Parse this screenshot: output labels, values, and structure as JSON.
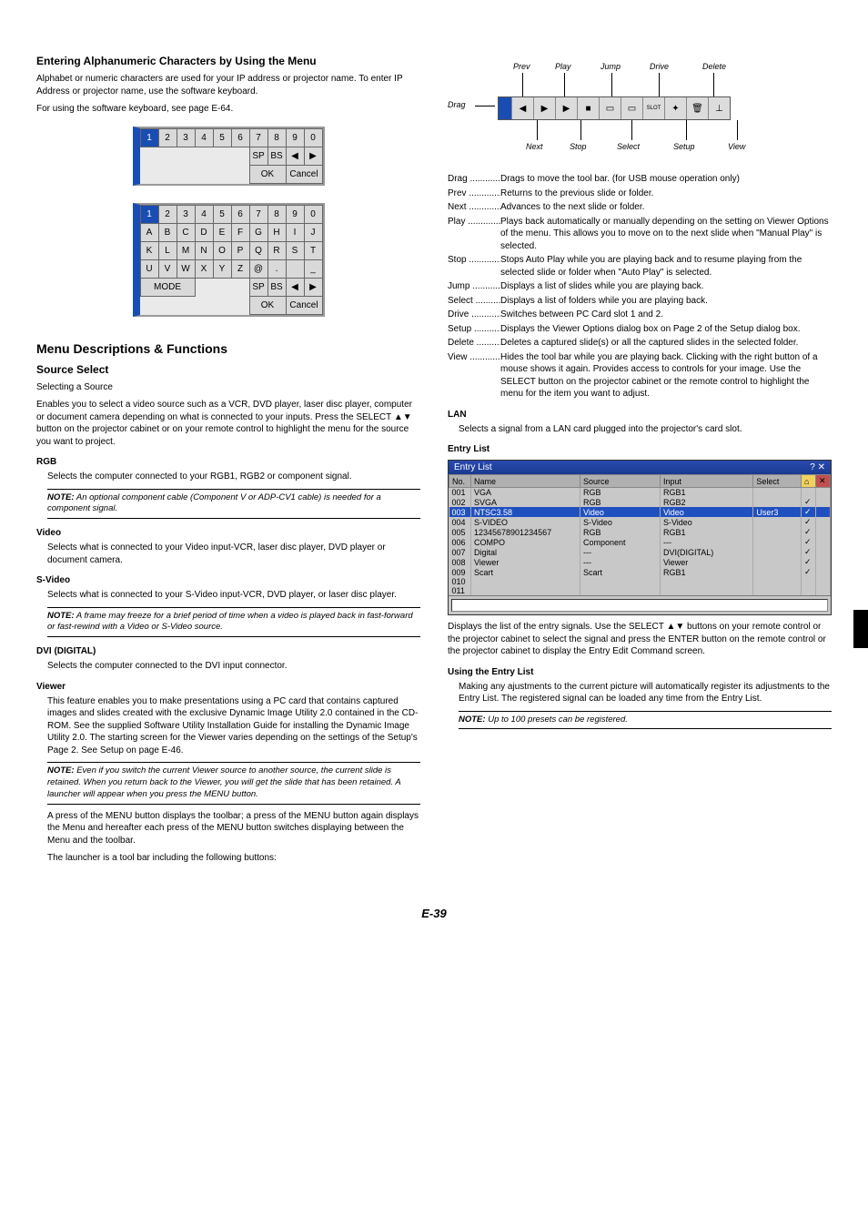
{
  "left": {
    "h1": "Entering Alphanumeric Characters by Using the Menu",
    "p1": "Alphabet or numeric characters are used for your IP address or projector name. To enter IP Address or projector name, use the software keyboard.",
    "p2": "For using the software keyboard, see page E-64.",
    "kb1": {
      "row1": [
        "1",
        "2",
        "3",
        "4",
        "5",
        "6",
        "7",
        "8",
        "9",
        "0"
      ],
      "sp": "SP",
      "bs": "BS",
      "l": "◀",
      "r": "▶",
      "ok": "OK",
      "cancel": "Cancel"
    },
    "kb2": {
      "row1": [
        "1",
        "2",
        "3",
        "4",
        "5",
        "6",
        "7",
        "8",
        "9",
        "0"
      ],
      "row2": [
        "A",
        "B",
        "C",
        "D",
        "E",
        "F",
        "G",
        "H",
        "I",
        "J"
      ],
      "row3": [
        "K",
        "L",
        "M",
        "N",
        "O",
        "P",
        "Q",
        "R",
        "S",
        "T"
      ],
      "row4": [
        "U",
        "V",
        "W",
        "X",
        "Y",
        "Z",
        "@",
        ".",
        "",
        "_"
      ],
      "mode": "MODE",
      "sp": "SP",
      "bs": "BS",
      "l": "◀",
      "r": "▶",
      "ok": "OK",
      "cancel": "Cancel"
    },
    "h2": "Menu Descriptions & Functions",
    "h3": "Source Select",
    "p3": "Selecting a Source",
    "p4": "Enables you to select a video source such as a VCR, DVD player, laser disc player, computer or document camera depending on what is connected to your inputs. Press the SELECT ▲▼ button on the projector cabinet or on your remote control to highlight the menu for the source you want to project.",
    "rgb_h": "RGB",
    "rgb_p": "Selects the computer connected to your RGB1, RGB2 or component signal.",
    "rgb_note": "An optional component cable (Component V or ADP-CV1 cable) is needed for a component signal.",
    "video_h": "Video",
    "video_p": "Selects what is connected to your Video input-VCR, laser disc player, DVD player or document camera.",
    "svideo_h": "S-Video",
    "svideo_p": "Selects what is connected to your S-Video input-VCR, DVD player, or laser disc player.",
    "svideo_note": "A frame may freeze for a brief period of time when a video is played back in fast-forward or fast-rewind with a Video or S-Video source.",
    "dvi_h": "DVI (DIGITAL)",
    "dvi_p": "Selects the computer connected to the DVI input connector.",
    "viewer_h": "Viewer",
    "viewer_p": "This feature enables you to make presentations using a PC card that contains captured images and slides created with the exclusive Dynamic Image Utility 2.0 contained in the CD-ROM. See the supplied Software Utility Installation Guide for installing the Dynamic Image Utility 2.0. The starting screen for the Viewer varies depending on the settings of the Setup's Page 2. See Setup on page E-46.",
    "viewer_note": "Even if you switch the current Viewer source to another source, the current slide is retained. When you return back to the Viewer, you will get the slide that has been retained. A launcher will appear when you press the MENU button.",
    "viewer_p2": "A press of the MENU button displays the toolbar; a press of the MENU button again displays the Menu and hereafter each press of the MENU button switches displaying between the Menu and the toolbar.",
    "viewer_p3": "The launcher is a tool bar including the following buttons:"
  },
  "right": {
    "tb_labels": {
      "drag": "Drag",
      "prev": "Prev",
      "play": "Play",
      "jump": "Jump",
      "drive": "Drive",
      "delete": "Delete",
      "next": "Next",
      "stop": "Stop",
      "select": "Select",
      "setup": "Setup",
      "view": "View"
    },
    "defs": [
      {
        "k": "Drag",
        "dots": "..............",
        "v": "Drags to move the tool bar. (for USB mouse operation only)"
      },
      {
        "k": "Prev",
        "dots": "..............",
        "v": "Returns to the previous slide or folder."
      },
      {
        "k": "Next",
        "dots": "..............",
        "v": "Advances to the next slide or folder."
      },
      {
        "k": "Play",
        "dots": "................",
        "v": "Plays back automatically or manually depending on the setting on Viewer Options of the menu. This allows you to move on to the next slide when \"Manual Play\" is selected."
      },
      {
        "k": "Stop",
        "dots": "...............",
        "v": "Stops Auto Play while you are playing back and to resume playing from the selected slide or folder when \"Auto Play\" is selected."
      },
      {
        "k": "Jump",
        "dots": "..............",
        "v": "Displays a list of slides while you are playing back."
      },
      {
        "k": "Select",
        "dots": "............",
        "v": "Displays a list of folders while you are playing back."
      },
      {
        "k": "Drive",
        "dots": "..............",
        "v": "Switches between PC Card slot 1 and 2."
      },
      {
        "k": "Setup",
        "dots": ".............",
        "v": "Displays the Viewer Options dialog box on Page 2 of the Setup dialog box."
      },
      {
        "k": "Delete",
        "dots": "............",
        "v": "Deletes a captured slide(s) or all the captured slides in the selected folder."
      },
      {
        "k": "View",
        "dots": "...............",
        "v": "Hides the tool bar while you are playing back. Clicking with the right button of a mouse shows it again. Provides access to controls for your image. Use the SELECT button on the projector cabinet or the remote control to highlight the menu for the item you want to adjust."
      }
    ],
    "lan_h": "LAN",
    "lan_p": "Selects a signal from a LAN card plugged into the projector's card slot.",
    "el_h": "Entry List",
    "el_title": "Entry List",
    "el_cols": [
      "No.",
      "Name",
      "Source",
      "Input",
      "Select",
      "",
      ""
    ],
    "el_rows": [
      {
        "no": "001",
        "name": "VGA",
        "src": "RGB",
        "inp": "RGB1",
        "sel": "",
        "c": ""
      },
      {
        "no": "002",
        "name": "SVGA",
        "src": "RGB",
        "inp": "RGB2",
        "sel": "",
        "c": "✓"
      },
      {
        "no": "003",
        "name": "NTSC3.58",
        "src": "Video",
        "inp": "Video",
        "sel": "User3",
        "c": "✓",
        "hl": true
      },
      {
        "no": "004",
        "name": "S-VIDEO",
        "src": "S-Video",
        "inp": "S-Video",
        "sel": "",
        "c": "✓"
      },
      {
        "no": "005",
        "name": "12345678901234567",
        "src": "RGB",
        "inp": "RGB1",
        "sel": "",
        "c": "✓"
      },
      {
        "no": "006",
        "name": "COMPO",
        "src": "Component",
        "inp": "---",
        "sel": "",
        "c": "✓"
      },
      {
        "no": "007",
        "name": "Digital",
        "src": "---",
        "inp": "DVI(DIGITAL)",
        "sel": "",
        "c": "✓"
      },
      {
        "no": "008",
        "name": "Viewer",
        "src": "---",
        "inp": "Viewer",
        "sel": "",
        "c": "✓"
      },
      {
        "no": "009",
        "name": "Scart",
        "src": "Scart",
        "inp": "RGB1",
        "sel": "",
        "c": "✓"
      },
      {
        "no": "010",
        "name": "",
        "src": "",
        "inp": "",
        "sel": "",
        "c": ""
      },
      {
        "no": "011",
        "name": "",
        "src": "",
        "inp": "",
        "sel": "",
        "c": ""
      }
    ],
    "el_p1": "Displays the list of the entry signals. Use the SELECT ▲▼ buttons on your remote control or the projector cabinet to select the signal and press the ENTER button on the remote control or the projector cabinet to display the Entry Edit Command screen.",
    "uel_h": "Using the Entry List",
    "uel_p": "Making any ajustments to the current picture will automatically register its adjustments to the Entry List. The registered signal can be loaded any time from the Entry List.",
    "uel_note": "Up to 100 presets can be registered."
  },
  "pageno": "E-39",
  "note_label": "NOTE:"
}
